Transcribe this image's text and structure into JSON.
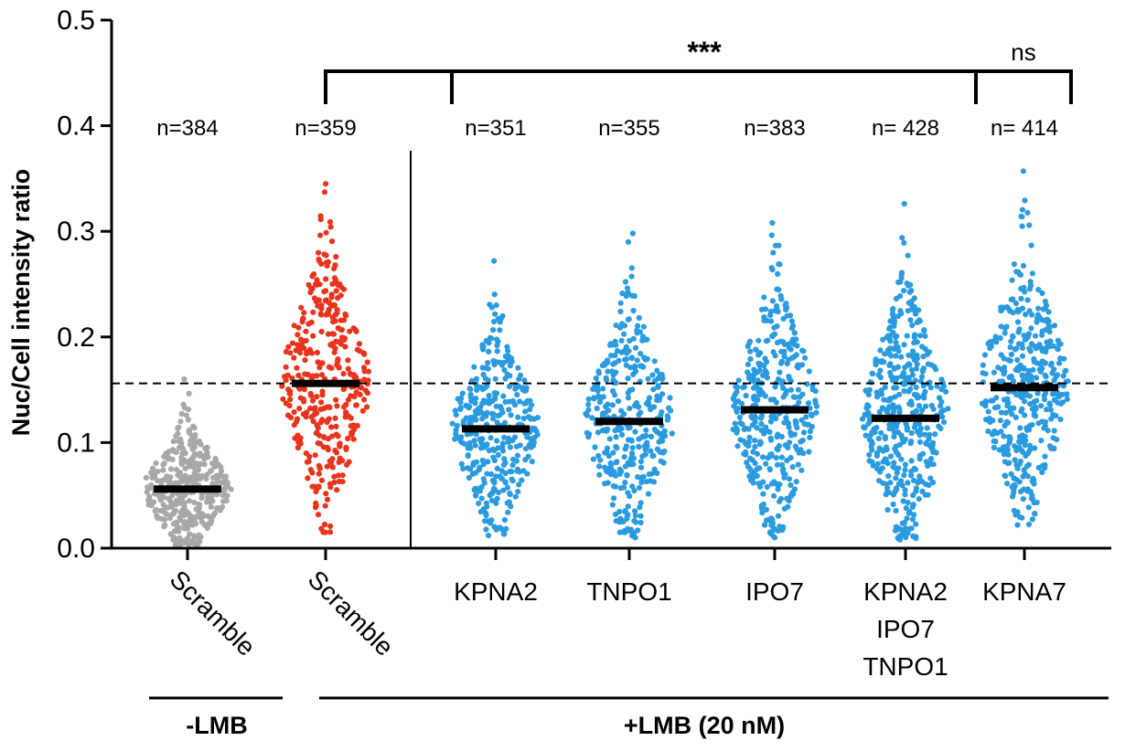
{
  "chart_data": {
    "type": "scatter",
    "subtype": "dot-plot",
    "ylabel": "Nuc/Cell intensity ratio",
    "ylim": [
      0.0,
      0.5
    ],
    "yticks": [
      "0.0",
      "0.1",
      "0.2",
      "0.3",
      "0.4",
      "0.5"
    ],
    "reference_line": 0.156,
    "categories": [
      {
        "label": [
          "Scramble"
        ],
        "n_label": "n=384",
        "n": 384,
        "median": 0.056,
        "min": 0.003,
        "max": 0.16,
        "color": "#a8a8a8"
      },
      {
        "label": [
          "Scramble"
        ],
        "n_label": "n=359",
        "n": 359,
        "median": 0.156,
        "min": 0.015,
        "max": 0.345,
        "color": "#e8341c"
      },
      {
        "label": [
          "KPNA2"
        ],
        "n_label": "n=351",
        "n": 351,
        "median": 0.113,
        "min": 0.012,
        "max": 0.272,
        "color": "#2b9be0"
      },
      {
        "label": [
          "TNPO1"
        ],
        "n_label": "n=355",
        "n": 355,
        "median": 0.12,
        "min": 0.01,
        "max": 0.298,
        "color": "#2b9be0"
      },
      {
        "label": [
          "IPO7"
        ],
        "n_label": "n=383",
        "n": 383,
        "median": 0.131,
        "min": 0.01,
        "max": 0.308,
        "color": "#2b9be0"
      },
      {
        "label": [
          "KPNA2",
          "IPO7",
          "TNPO1"
        ],
        "n_label": "n= 428",
        "n": 428,
        "median": 0.123,
        "min": 0.008,
        "max": 0.326,
        "color": "#2b9be0"
      },
      {
        "label": [
          "KPNA7"
        ],
        "n_label": "n= 414",
        "n": 414,
        "median": 0.152,
        "min": 0.022,
        "max": 0.357,
        "color": "#2b9be0"
      }
    ],
    "groups": [
      {
        "label": "-LMB"
      },
      {
        "label": "+LMB (20 nM)"
      }
    ],
    "significance": [
      {
        "label": "***",
        "from_category": 1,
        "to_categories": [
          2,
          3,
          4,
          5
        ]
      },
      {
        "label": "ns",
        "from_category": 5,
        "to_categories": [
          6
        ]
      }
    ]
  }
}
